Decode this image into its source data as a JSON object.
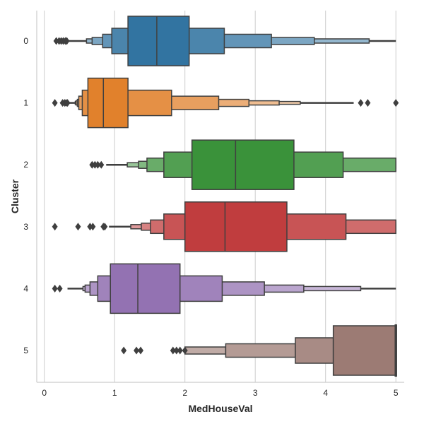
{
  "chart_data": {
    "type": "boxen",
    "orientation": "horizontal",
    "xlabel": "MedHouseVal",
    "ylabel": "Cluster",
    "xlim": [
      -0.11,
      5.12
    ],
    "xticks": [
      "0",
      "1",
      "2",
      "3",
      "4",
      "5"
    ],
    "categories": [
      "0",
      "1",
      "2",
      "3",
      "4",
      "5"
    ],
    "grid": "vertical",
    "colors": [
      "#3274a1",
      "#e1812c",
      "#3a923a",
      "#c03d3e",
      "#9372b2",
      "#9c7b74"
    ],
    "series": [
      {
        "category": "0",
        "median": 1.6,
        "boxes": [
          [
            1.19,
            2.06
          ],
          [
            0.96,
            2.56
          ],
          [
            0.83,
            3.23
          ],
          [
            0.68,
            3.84
          ],
          [
            0.6,
            4.62
          ]
        ],
        "tails": [
          [
            0.33,
            0.6
          ],
          [
            4.62,
            5.0
          ]
        ],
        "outliers": [
          0.17,
          0.21,
          0.24,
          0.27,
          0.3,
          0.32
        ]
      },
      {
        "category": "1",
        "median": 0.84,
        "boxes": [
          [
            0.62,
            1.19
          ],
          [
            0.54,
            1.81
          ],
          [
            0.49,
            2.48
          ],
          [
            0.47,
            2.91
          ],
          [
            0.45,
            3.34
          ],
          [
            0.44,
            3.64
          ]
        ],
        "tails": [
          [
            0.36,
            0.44
          ],
          [
            3.64,
            4.4
          ]
        ],
        "outliers": [
          0.15,
          0.26,
          0.29,
          0.31,
          0.33,
          4.5,
          4.6,
          5.0
        ]
      },
      {
        "category": "2",
        "median": 2.72,
        "boxes": [
          [
            2.1,
            3.55
          ],
          [
            1.7,
            4.25
          ],
          [
            1.46,
            5.0
          ],
          [
            1.34,
            5.0
          ],
          [
            1.18,
            5.0
          ]
        ],
        "tails": [
          [
            0.88,
            1.18
          ]
        ],
        "outliers": [
          0.68,
          0.72,
          0.76,
          0.81
        ]
      },
      {
        "category": "3",
        "median": 2.57,
        "boxes": [
          [
            2.0,
            3.45
          ],
          [
            1.7,
            4.29
          ],
          [
            1.51,
            5.0
          ],
          [
            1.38,
            5.0
          ],
          [
            1.23,
            5.0
          ]
        ],
        "tails": [
          [
            0.92,
            1.23
          ]
        ],
        "outliers": [
          0.15,
          0.48,
          0.65,
          0.69,
          0.84,
          0.86
        ]
      },
      {
        "category": "4",
        "median": 1.33,
        "boxes": [
          [
            0.94,
            1.93
          ],
          [
            0.76,
            2.53
          ],
          [
            0.65,
            3.13
          ],
          [
            0.58,
            3.69
          ],
          [
            0.55,
            4.5
          ]
        ],
        "tails": [
          [
            0.33,
            0.55
          ],
          [
            4.5,
            5.0
          ]
        ],
        "outliers": [
          0.15,
          0.22
        ]
      },
      {
        "category": "5",
        "median": 5.0,
        "boxes": [
          [
            4.11,
            5.0
          ],
          [
            3.57,
            4.11
          ],
          [
            2.58,
            3.57
          ],
          [
            2.0,
            2.58
          ]
        ],
        "tails": [],
        "outliers": [
          1.13,
          1.31,
          1.37,
          1.83,
          1.88,
          1.93,
          2.0
        ]
      }
    ]
  }
}
